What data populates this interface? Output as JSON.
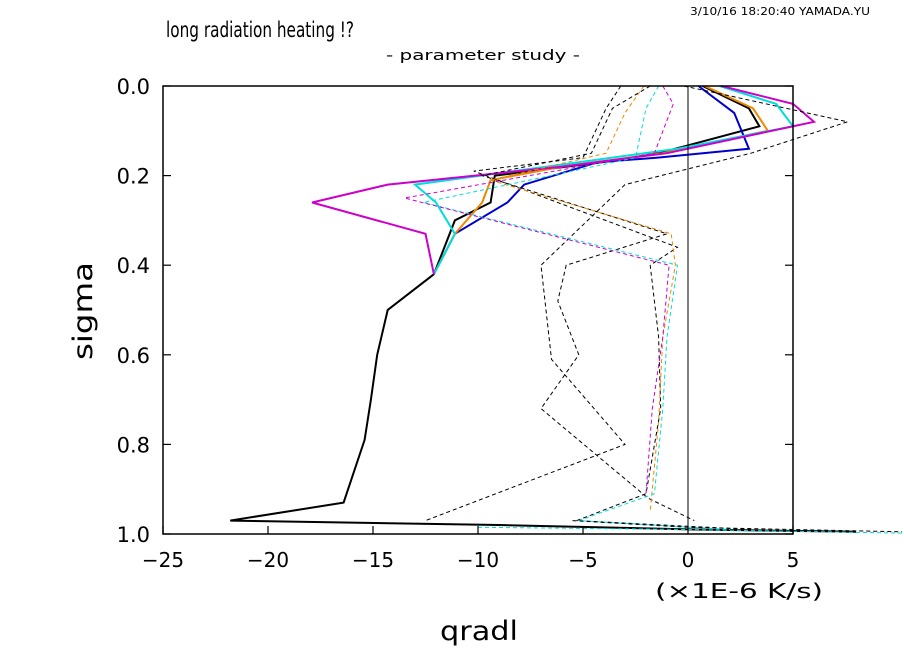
{
  "header": {
    "title": "long radiation heating !?",
    "subtitle": "- parameter study -",
    "timestamp": "3/10/16 18:20:40 YAMADA.YU"
  },
  "chart_data": {
    "type": "line",
    "xlabel": "qradl",
    "ylabel": "sigma",
    "units": "(×1E-6 K/s)",
    "xlim": [
      -25,
      5
    ],
    "ylim": [
      1.0,
      0.0
    ],
    "y_inverted": true,
    "x_ticks": [
      "-25",
      "-20",
      "-15",
      "-10",
      "-5",
      "0",
      "5"
    ],
    "y_ticks": [
      "0.0",
      "0.2",
      "0.4",
      "0.6",
      "0.8",
      "1.0"
    ],
    "zero_line": true,
    "grid": false,
    "legend": "none",
    "series": [
      {
        "color": "#000000",
        "style": "solid",
        "x": [
          0.7,
          2.9,
          3.4,
          -1.4,
          -4.1,
          -9.2,
          -9.4,
          -11.1,
          -12.1,
          -14.3,
          -14.8,
          -15.1,
          -15.4,
          -16.4,
          -21.8,
          -9.0,
          0.3,
          8.0
        ],
        "y": [
          0.0,
          0.05,
          0.09,
          0.15,
          0.17,
          0.2,
          0.26,
          0.3,
          0.42,
          0.5,
          0.6,
          0.7,
          0.79,
          0.93,
          0.97,
          0.98,
          0.99,
          0.995
        ]
      },
      {
        "color": "#0000cc",
        "style": "solid",
        "x": [
          0.5,
          2.2,
          2.9,
          -1.5,
          -4.3,
          -7.8,
          -8.6,
          -11.1,
          -12.1
        ],
        "y": [
          0.0,
          0.06,
          0.14,
          0.16,
          0.17,
          0.22,
          0.26,
          0.33,
          0.42
        ]
      },
      {
        "color": "#ee8800",
        "style": "solid",
        "x": [
          0.8,
          3.1,
          3.8,
          -1.2,
          -6.0,
          -9.4,
          -9.8,
          -11.1,
          -12.1
        ],
        "y": [
          0.0,
          0.05,
          0.1,
          0.15,
          0.18,
          0.21,
          0.26,
          0.33,
          0.42
        ]
      },
      {
        "color": "#00dddd",
        "style": "solid",
        "x": [
          1.5,
          4.2,
          5.0,
          -0.5,
          -5.2,
          -13.0,
          -12.0,
          -11.1,
          -12.1
        ],
        "y": [
          0.0,
          0.04,
          0.09,
          0.14,
          0.17,
          0.22,
          0.26,
          0.33,
          0.42
        ]
      },
      {
        "color": "#cc00cc",
        "style": "solid",
        "x": [
          1.6,
          5.0,
          6.0,
          -1.0,
          -6.0,
          -14.3,
          -17.9,
          -12.5,
          -12.1
        ],
        "y": [
          0.0,
          0.04,
          0.08,
          0.15,
          0.18,
          0.22,
          0.26,
          0.33,
          0.42
        ]
      },
      {
        "color": "#000000",
        "style": "dashed",
        "x": [
          -0.2,
          1.8,
          7.6,
          3.0,
          -3.0,
          -7.0,
          -6.5,
          -3.0,
          -12.5
        ],
        "y": [
          0.0,
          0.02,
          0.08,
          0.15,
          0.22,
          0.4,
          0.61,
          0.8,
          0.97
        ]
      },
      {
        "color": "#000000",
        "style": "dashed",
        "x": [
          -1.8,
          -3.6,
          -4.6,
          -9.8,
          -1.0,
          -5.8,
          -6.2,
          -5.2,
          -7.0,
          -1.9,
          0.3
        ],
        "y": [
          0.0,
          0.05,
          0.15,
          0.2,
          0.33,
          0.4,
          0.48,
          0.6,
          0.72,
          0.92,
          0.97
        ]
      },
      {
        "color": "#000000",
        "style": "dashed",
        "x": [
          -3.2,
          -3.9,
          -5.0,
          -10.2,
          -0.5,
          -1.8,
          -1.4,
          -1.3,
          -2.0,
          -5.3,
          3.0
        ],
        "y": [
          0.0,
          0.05,
          0.16,
          0.19,
          0.36,
          0.4,
          0.56,
          0.72,
          0.91,
          0.97,
          0.99
        ]
      },
      {
        "color": "#ee8800",
        "style": "dashed",
        "x": [
          -2.1,
          -3.0,
          -3.9,
          -9.4,
          -0.8,
          -0.6,
          -1.2,
          -1.4,
          -1.8
        ],
        "y": [
          0.0,
          0.06,
          0.15,
          0.21,
          0.33,
          0.4,
          0.56,
          0.75,
          0.95
        ]
      },
      {
        "color": "#00dddd",
        "style": "dashed",
        "x": [
          -1.4,
          -2.0,
          -2.5,
          -12.6,
          -0.5,
          -1.0,
          -1.2,
          -1.6,
          -5.2,
          2.0
        ],
        "y": [
          0.0,
          0.05,
          0.16,
          0.26,
          0.4,
          0.56,
          0.72,
          0.91,
          0.97,
          0.99
        ]
      },
      {
        "color": "#cc00cc",
        "style": "dashed",
        "x": [
          -1.2,
          -0.7,
          -1.6,
          -13.5,
          -0.9,
          -1.2,
          -1.7,
          -2.0
        ],
        "y": [
          0.0,
          0.04,
          0.15,
          0.25,
          0.4,
          0.56,
          0.72,
          0.91
        ]
      }
    ],
    "lower_tail": [
      {
        "color": "#000000",
        "style": "dashed",
        "x": [
          -5.5,
          0.0,
          10.5
        ],
        "y": [
          0.97,
          0.985,
          0.995
        ]
      },
      {
        "color": "#00dddd",
        "style": "dashed",
        "x": [
          -10.0,
          0.0,
          10.5
        ],
        "y": [
          0.985,
          0.99,
          0.998
        ]
      }
    ]
  }
}
